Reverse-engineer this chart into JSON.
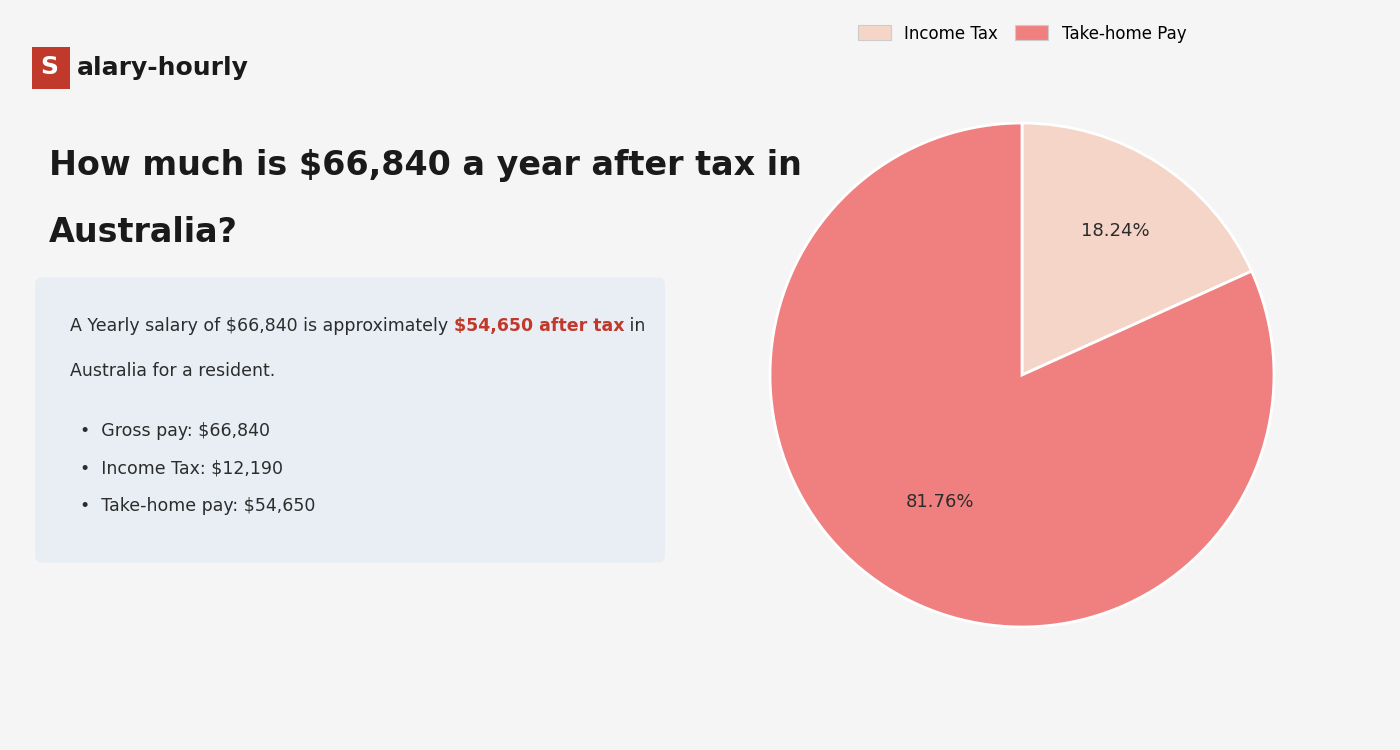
{
  "title_line1": "How much is $66,840 a year after tax in",
  "title_line2": "Australia?",
  "logo_text_s": "S",
  "logo_text_rest": "alary-hourly",
  "logo_bg_color": "#c0392b",
  "logo_text_color": "#ffffff",
  "logo_rest_color": "#1a1a1a",
  "title_color": "#1a1a1a",
  "title_fontsize": 24,
  "info_box_bg": "#e8eef4",
  "info_box_text": "A Yearly salary of $66,840 is approximately ",
  "info_highlight": "$54,650 after tax",
  "info_rest": " in",
  "info_line2": "Australia for a resident.",
  "info_highlight_color": "#c0392b",
  "info_text_color": "#2c2c2c",
  "bullet_items": [
    "Gross pay: $66,840",
    "Income Tax: $12,190",
    "Take-home pay: $54,650"
  ],
  "pie_values": [
    18.24,
    81.76
  ],
  "pie_labels": [
    "Income Tax",
    "Take-home Pay"
  ],
  "pie_colors": [
    "#f5d5c8",
    "#f08080"
  ],
  "pie_pct_labels": [
    "18.24%",
    "81.76%"
  ],
  "pie_label_color": "#2c2c2c",
  "bg_color": "#f5f5f5",
  "legend_colors": [
    "#f5d5c8",
    "#f08080"
  ],
  "legend_labels": [
    "Income Tax",
    "Take-home Pay"
  ]
}
